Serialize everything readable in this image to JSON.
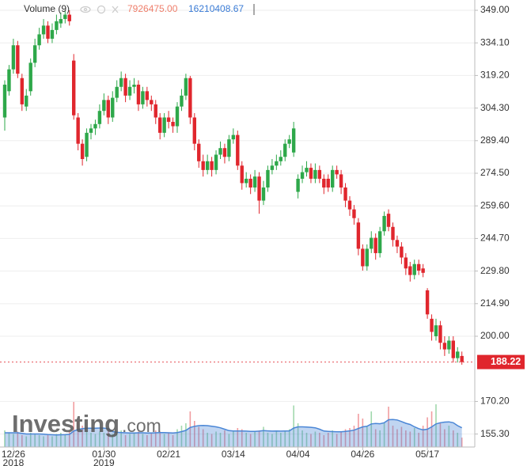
{
  "chart_data": {
    "type": "candlestick",
    "legend_title": "Volume (9)",
    "volume_last_label": "7926475.00",
    "volume_ma_last_label": "16210408.67",
    "brand_name": "Investing",
    "brand_suffix": ".com",
    "up_color": "#2ea84a",
    "down_color": "#e0262d",
    "volume_color": "#b9c8a6",
    "volume_ma_color": "#4a86d6",
    "last_price_color": "#e0262d",
    "grid": true,
    "categories": [
      null,
      null,
      "12/26",
      null,
      null,
      null,
      null,
      null,
      null,
      null,
      null,
      null,
      null,
      null,
      null,
      null,
      null,
      null,
      null,
      null,
      null,
      null,
      null,
      "01/30",
      null,
      null,
      null,
      null,
      null,
      null,
      null,
      null,
      null,
      null,
      null,
      null,
      null,
      null,
      "02/21",
      null,
      null,
      null,
      null,
      null,
      null,
      null,
      null,
      null,
      null,
      null,
      null,
      null,
      null,
      "03/14",
      null,
      null,
      null,
      null,
      null,
      null,
      null,
      null,
      null,
      null,
      null,
      null,
      null,
      null,
      "04/04",
      null,
      null,
      null,
      null,
      null,
      null,
      null,
      null,
      null,
      null,
      null,
      null,
      null,
      null,
      "04/26",
      null,
      null,
      null,
      null,
      null,
      null,
      null,
      null,
      null,
      null,
      null,
      null,
      null,
      null,
      "05/17",
      null,
      null,
      null,
      null,
      null,
      null,
      null,
      null
    ],
    "category_years": [
      "2018",
      "2019"
    ],
    "open": [
      300,
      312,
      322,
      333,
      318,
      305,
      312,
      325,
      333,
      338,
      342,
      336,
      340,
      343,
      345,
      347,
      326,
      300,
      288,
      282,
      293,
      295,
      297,
      303,
      308,
      300,
      309,
      314,
      318,
      310,
      314,
      315,
      306,
      312,
      308,
      306,
      300,
      293,
      300,
      298,
      296,
      305,
      310,
      318,
      300,
      288,
      280,
      276,
      280,
      276,
      283,
      286,
      282,
      290,
      292,
      278,
      270,
      272,
      268,
      273,
      262,
      268,
      276,
      278,
      280,
      282,
      288,
      284,
      266,
      272,
      275,
      277,
      272,
      276,
      272,
      272,
      268,
      276,
      274,
      268,
      262,
      258,
      252,
      240,
      232,
      240,
      245,
      238,
      248,
      256,
      250,
      244,
      241,
      236,
      232,
      228,
      233,
      231,
      221,
      208,
      200,
      205,
      197,
      194,
      198,
      190,
      191
    ],
    "high": [
      317,
      324,
      336,
      335,
      320,
      313,
      327,
      336,
      341,
      345,
      344,
      343,
      347,
      348,
      349,
      349,
      329,
      302,
      290,
      295,
      297,
      299,
      306,
      311,
      310,
      312,
      317,
      321,
      320,
      317,
      318,
      317,
      314,
      314,
      310,
      308,
      302,
      302,
      303,
      300,
      307,
      313,
      320,
      319,
      302,
      290,
      283,
      283,
      282,
      285,
      289,
      288,
      292,
      295,
      294,
      280,
      275,
      274,
      276,
      275,
      271,
      278,
      281,
      283,
      285,
      290,
      292,
      298,
      274,
      278,
      280,
      279,
      279,
      278,
      274,
      274,
      278,
      278,
      276,
      270,
      264,
      260,
      254,
      242,
      242,
      248,
      247,
      250,
      257,
      258,
      252,
      246,
      243,
      238,
      234,
      235,
      235,
      233,
      222,
      210,
      208,
      207,
      200,
      200,
      200,
      195,
      193
    ],
    "low": [
      294,
      310,
      320,
      318,
      303,
      303,
      310,
      323,
      331,
      336,
      334,
      334,
      338,
      341,
      343,
      342,
      299,
      285,
      278,
      280,
      290,
      292,
      295,
      301,
      297,
      298,
      307,
      312,
      307,
      308,
      311,
      303,
      304,
      305,
      303,
      297,
      290,
      291,
      295,
      293,
      293,
      303,
      308,
      297,
      285,
      277,
      273,
      274,
      273,
      274,
      281,
      279,
      280,
      288,
      276,
      267,
      268,
      265,
      266,
      256,
      260,
      266,
      274,
      276,
      278,
      280,
      286,
      282,
      263,
      270,
      273,
      270,
      270,
      270,
      265,
      266,
      266,
      272,
      265,
      259,
      255,
      251,
      237,
      230,
      230,
      238,
      235,
      236,
      246,
      248,
      241,
      238,
      233,
      228,
      225,
      226,
      228,
      227,
      208,
      198,
      198,
      194,
      191,
      192,
      188,
      188,
      187
    ],
    "close": [
      315,
      322,
      333,
      320,
      306,
      310,
      325,
      333,
      338,
      342,
      336,
      340,
      344,
      345,
      347,
      344,
      301,
      288,
      281,
      293,
      295,
      297,
      303,
      308,
      300,
      309,
      314,
      318,
      310,
      314,
      315,
      306,
      312,
      308,
      306,
      300,
      293,
      300,
      298,
      296,
      305,
      310,
      318,
      300,
      288,
      280,
      276,
      280,
      276,
      283,
      286,
      282,
      290,
      292,
      278,
      270,
      272,
      268,
      273,
      262,
      268,
      276,
      278,
      280,
      282,
      288,
      290,
      295,
      272,
      275,
      277,
      272,
      276,
      272,
      268,
      268,
      276,
      274,
      268,
      262,
      258,
      254,
      240,
      232,
      240,
      245,
      238,
      248,
      255,
      250,
      244,
      241,
      236,
      231,
      228,
      233,
      230,
      229,
      210,
      202,
      205,
      197,
      194,
      198,
      190,
      193,
      188.22
    ],
    "volume": [
      14000000,
      12000000,
      11000000,
      13000000,
      10000000,
      9000000,
      12000000,
      11000000,
      10000000,
      9000000,
      10000000,
      9000000,
      11000000,
      12000000,
      10000000,
      13000000,
      38000000,
      22000000,
      18000000,
      14000000,
      12000000,
      11000000,
      13000000,
      12000000,
      15000000,
      11000000,
      12000000,
      14000000,
      10000000,
      11000000,
      12000000,
      13000000,
      11000000,
      10000000,
      12000000,
      14000000,
      13000000,
      11000000,
      12000000,
      10000000,
      15000000,
      18000000,
      20000000,
      30000000,
      22000000,
      17000000,
      15000000,
      12000000,
      11000000,
      13000000,
      12000000,
      14000000,
      11000000,
      13000000,
      16000000,
      15000000,
      12000000,
      11000000,
      13000000,
      14000000,
      17000000,
      12000000,
      11000000,
      13000000,
      12000000,
      14000000,
      15000000,
      35000000,
      20000000,
      14000000,
      12000000,
      11000000,
      13000000,
      12000000,
      10000000,
      12000000,
      14000000,
      11000000,
      13000000,
      15000000,
      16000000,
      18000000,
      28000000,
      24000000,
      17000000,
      30000000,
      15000000,
      14000000,
      20000000,
      34000000,
      18000000,
      15000000,
      17000000,
      14000000,
      13000000,
      16000000,
      12000000,
      18000000,
      25000000,
      30000000,
      36000000,
      20000000,
      15000000,
      18000000,
      14000000,
      12000000,
      7926475
    ],
    "volume_ma": [
      12000000,
      12000000,
      12000000,
      12000000,
      11500000,
      11000000,
      11000000,
      11000000,
      11000000,
      10800000,
      10500000,
      10300000,
      10200000,
      10300000,
      10400000,
      10700000,
      13500000,
      14800000,
      15500000,
      15800000,
      15800000,
      15800000,
      16000000,
      15900000,
      15500000,
      13000000,
      12400000,
      12200000,
      12000000,
      11800000,
      11800000,
      12000000,
      12000000,
      11800000,
      11800000,
      12000000,
      12200000,
      12200000,
      12000000,
      11800000,
      12200000,
      13000000,
      14000000,
      16500000,
      17500000,
      18000000,
      18200000,
      18000000,
      17500000,
      17000000,
      16200000,
      15000000,
      13800000,
      13500000,
      13500000,
      13500000,
      13400000,
      13200000,
      13200000,
      13400000,
      13800000,
      13600000,
      13400000,
      13500000,
      13400000,
      13500000,
      13600000,
      16000000,
      17000000,
      17000000,
      16800000,
      16600000,
      16200000,
      15000000,
      13500000,
      13200000,
      13000000,
      12800000,
      12800000,
      13200000,
      13600000,
      14200000,
      15600000,
      17000000,
      17500000,
      19500000,
      19800000,
      19600000,
      20500000,
      23000000,
      23200000,
      22800000,
      21500000,
      20000000,
      19000000,
      17000000,
      15500000,
      14500000,
      15000000,
      17000000,
      19500000,
      20500000,
      21000000,
      21200000,
      20500000,
      18000000,
      16210408.67
    ],
    "volume_lim": [
      0,
      40000000
    ],
    "ylim": [
      150.1,
      353.7
    ],
    "yticks": [
      {
        "value": 349,
        "label": "349.00"
      },
      {
        "value": 334.1,
        "label": "334.10"
      },
      {
        "value": 319.2,
        "label": "319.20"
      },
      {
        "value": 304.3,
        "label": "304.30"
      },
      {
        "value": 289.4,
        "label": "289.40"
      },
      {
        "value": 274.5,
        "label": "274.50"
      },
      {
        "value": 259.6,
        "label": "259.60"
      },
      {
        "value": 244.7,
        "label": "244.70"
      },
      {
        "value": 229.8,
        "label": "229.80"
      },
      {
        "value": 214.9,
        "label": "214.90"
      },
      {
        "value": 200,
        "label": "200.00"
      },
      {
        "value": 170.2,
        "label": "170.20"
      },
      {
        "value": 155.3,
        "label": "155.30"
      }
    ]
  }
}
